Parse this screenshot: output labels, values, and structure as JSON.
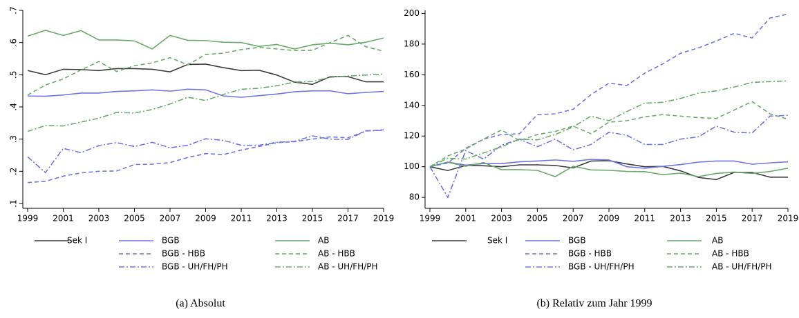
{
  "chart_data": [
    {
      "type": "line",
      "caption": "(a) Absolut",
      "x": [
        1999,
        2000,
        2001,
        2002,
        2003,
        2004,
        2005,
        2006,
        2007,
        2008,
        2009,
        2010,
        2011,
        2012,
        2013,
        2014,
        2015,
        2016,
        2017,
        2018,
        2019
      ],
      "xlim": [
        1999,
        2019
      ],
      "xticks": [
        1999,
        2001,
        2003,
        2005,
        2007,
        2009,
        2011,
        2013,
        2015,
        2017,
        2019
      ],
      "ylim": [
        0.1,
        0.7
      ],
      "yticks": [
        {
          "value": 0.1,
          "label": ".1"
        },
        {
          "value": 0.2,
          "label": ".2"
        },
        {
          "value": 0.3,
          "label": ".3"
        },
        {
          "value": 0.4,
          "label": ".4"
        },
        {
          "value": 0.5,
          "label": ".5"
        },
        {
          "value": 0.6,
          "label": ".6"
        },
        {
          "value": 0.7,
          "label": ".7"
        }
      ],
      "ytick_label_angle": -90,
      "series": [
        {
          "name": "Sek I",
          "color": "#3d3d3d",
          "dash": "solid",
          "values": [
            0.513,
            0.5,
            0.517,
            0.516,
            0.513,
            0.519,
            0.519,
            0.517,
            0.509,
            0.532,
            0.533,
            0.522,
            0.513,
            0.514,
            0.499,
            0.477,
            0.47,
            0.494,
            0.494,
            0.478,
            0.478
          ]
        },
        {
          "name": "BGB",
          "color": "#7075e3",
          "dash": "solid",
          "values": [
            0.434,
            0.433,
            0.437,
            0.443,
            0.443,
            0.448,
            0.45,
            0.453,
            0.449,
            0.455,
            0.453,
            0.434,
            0.43,
            0.435,
            0.44,
            0.447,
            0.45,
            0.45,
            0.441,
            0.445,
            0.448
          ]
        },
        {
          "name": "AB",
          "color": "#6aab6a",
          "dash": "solid",
          "values": [
            0.62,
            0.638,
            0.622,
            0.637,
            0.608,
            0.608,
            0.605,
            0.58,
            0.622,
            0.607,
            0.606,
            0.601,
            0.6,
            0.588,
            0.594,
            0.58,
            0.593,
            0.598,
            0.593,
            0.601,
            0.614
          ]
        },
        {
          "name": "BGB - HBB",
          "color": "#7075e3",
          "dash": "dash",
          "values": [
            0.165,
            0.169,
            0.185,
            0.195,
            0.2,
            0.201,
            0.221,
            0.222,
            0.227,
            0.243,
            0.255,
            0.252,
            0.266,
            0.277,
            0.289,
            0.292,
            0.3,
            0.307,
            0.304,
            0.325,
            0.329
          ]
        },
        {
          "name": "AB - HBB",
          "color": "#6aab6a",
          "dash": "dash",
          "values": [
            0.437,
            0.468,
            0.487,
            0.515,
            0.541,
            0.51,
            0.528,
            0.537,
            0.553,
            0.531,
            0.563,
            0.567,
            0.578,
            0.585,
            0.58,
            0.575,
            0.576,
            0.6,
            0.622,
            0.587,
            0.573
          ]
        },
        {
          "name": "BGB - UH/FH/PH",
          "color": "#7075e3",
          "dash": "dashdot",
          "values": [
            0.245,
            0.196,
            0.271,
            0.258,
            0.28,
            0.289,
            0.277,
            0.29,
            0.273,
            0.281,
            0.301,
            0.296,
            0.281,
            0.281,
            0.29,
            0.293,
            0.31,
            0.3,
            0.299,
            0.326,
            0.327
          ]
        },
        {
          "name": "AB - UH/FH/PH",
          "color": "#6aab6a",
          "dash": "dashdot",
          "values": [
            0.324,
            0.342,
            0.341,
            0.353,
            0.365,
            0.383,
            0.381,
            0.392,
            0.409,
            0.43,
            0.42,
            0.439,
            0.455,
            0.458,
            0.466,
            0.477,
            0.479,
            0.492,
            0.496,
            0.499,
            0.502
          ]
        }
      ]
    },
    {
      "type": "line",
      "caption": "(b) Relativ zum Jahr 1999",
      "x": [
        1999,
        2000,
        2001,
        2002,
        2003,
        2004,
        2005,
        2006,
        2007,
        2008,
        2009,
        2010,
        2011,
        2012,
        2013,
        2014,
        2015,
        2016,
        2017,
        2018,
        2019
      ],
      "xlim": [
        1999,
        2019
      ],
      "xticks": [
        1999,
        2001,
        2003,
        2005,
        2007,
        2009,
        2011,
        2013,
        2015,
        2017,
        2019
      ],
      "ylim": [
        76,
        202
      ],
      "yticks": [
        80,
        100,
        120,
        140,
        160,
        180,
        200
      ],
      "ytick_label_angle": 0,
      "series": [
        {
          "name": "Sek I",
          "color": "#3d3d3d",
          "dash": "solid",
          "values": [
            100,
            97.5,
            100.8,
            100.6,
            100,
            101.2,
            101.2,
            100.8,
            99.2,
            103.7,
            103.9,
            101.8,
            100,
            100.2,
            97.3,
            93,
            91.6,
            96.3,
            96.3,
            93.2,
            93.2
          ]
        },
        {
          "name": "BGB",
          "color": "#7075e3",
          "dash": "solid",
          "values": [
            100,
            103,
            101,
            102,
            102,
            103.2,
            103.7,
            104.4,
            103.5,
            104.8,
            104.4,
            100,
            99,
            100.2,
            101.4,
            103,
            103.7,
            103.7,
            101.6,
            102.5,
            103.2
          ]
        },
        {
          "name": "AB",
          "color": "#6aab6a",
          "dash": "solid",
          "values": [
            100,
            102.9,
            100.3,
            102.7,
            98.1,
            98.1,
            97.6,
            93.5,
            100.3,
            97.9,
            97.7,
            96.9,
            96.8,
            94.8,
            95.8,
            93.5,
            95.6,
            96.5,
            95.6,
            96.9,
            99
          ]
        },
        {
          "name": "BGB - HBB",
          "color": "#7075e3",
          "dash": "dash",
          "values": [
            100,
            102.4,
            112,
            118,
            121,
            121.5,
            134,
            134.5,
            137.5,
            147,
            154.5,
            153,
            161,
            167,
            174,
            177.5,
            182,
            187,
            184,
            197,
            199.5
          ]
        },
        {
          "name": "AB - HBB",
          "color": "#6aab6a",
          "dash": "dash",
          "values": [
            100,
            107,
            111.5,
            118,
            124,
            117,
            121,
            123,
            126.5,
            121.5,
            129,
            130,
            132.5,
            134,
            133,
            132,
            131.5,
            137,
            142.5,
            134.5,
            131
          ]
        },
        {
          "name": "BGB - UH/FH/PH",
          "color": "#7075e3",
          "dash": "dashdot",
          "values": [
            100,
            80,
            110.5,
            105,
            114,
            118,
            113,
            118,
            111,
            114.5,
            122.5,
            120.5,
            114.5,
            114.5,
            118,
            119.5,
            126.5,
            122.5,
            122,
            133,
            133.5
          ]
        },
        {
          "name": "AB - UH/FH/PH",
          "color": "#6aab6a",
          "dash": "dashdot",
          "values": [
            100,
            105.5,
            105,
            109,
            113,
            118,
            117.5,
            121,
            126,
            133,
            130,
            136,
            141.5,
            142,
            144.5,
            148,
            149.5,
            152,
            155,
            155.5,
            156
          ]
        }
      ]
    }
  ]
}
